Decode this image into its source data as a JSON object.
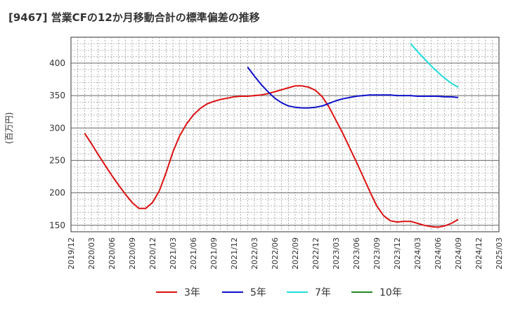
{
  "chart_data": {
    "type": "line",
    "title": "[9467]  営業CFの12か月移動合計の標準偏差の推移",
    "ylabel": "(百万円)",
    "xlabel": "",
    "ylim": [
      140,
      440
    ],
    "yticks": [
      150,
      200,
      250,
      300,
      350,
      400
    ],
    "x_range": [
      "2019-12",
      "2025-03"
    ],
    "x_tick_labels": [
      "2019/12",
      "2020/03",
      "2020/06",
      "2020/09",
      "2020/12",
      "2021/03",
      "2021/06",
      "2021/09",
      "2021/12",
      "2022/03",
      "2022/06",
      "2022/09",
      "2022/12",
      "2023/03",
      "2023/06",
      "2023/09",
      "2023/12",
      "2024/03",
      "2024/06",
      "2024/09",
      "2024/12",
      "2025/03"
    ],
    "grid": true,
    "legend_position": "bottom",
    "series": [
      {
        "name": "3年",
        "color": "#dd1111",
        "x": [
          "2020-02",
          "2020-03",
          "2020-04",
          "2020-05",
          "2020-06",
          "2020-07",
          "2020-08",
          "2020-09",
          "2020-10",
          "2020-11",
          "2020-12",
          "2021-01",
          "2021-02",
          "2021-03",
          "2021-04",
          "2021-05",
          "2021-06",
          "2021-07",
          "2021-08",
          "2021-09",
          "2021-10",
          "2021-11",
          "2021-12",
          "2022-01",
          "2022-02",
          "2022-03",
          "2022-04",
          "2022-05",
          "2022-06",
          "2022-07",
          "2022-08",
          "2022-09",
          "2022-10",
          "2022-11",
          "2022-12",
          "2023-01",
          "2023-02",
          "2023-03",
          "2023-04",
          "2023-05",
          "2023-06",
          "2023-07",
          "2023-08",
          "2023-09",
          "2023-10",
          "2023-11",
          "2023-12",
          "2024-01",
          "2024-02",
          "2024-03",
          "2024-04",
          "2024-05",
          "2024-06",
          "2024-07",
          "2024-08",
          "2024-09"
        ],
        "values": [
          292,
          276,
          259,
          243,
          227,
          212,
          198,
          185,
          176,
          176,
          185,
          203,
          231,
          263,
          288,
          306,
          320,
          330,
          337,
          341,
          344,
          346,
          348,
          349,
          349,
          350,
          351,
          353,
          356,
          359,
          362,
          365,
          365,
          363,
          358,
          348,
          332,
          312,
          292,
          270,
          248,
          225,
          202,
          180,
          165,
          157,
          155,
          156,
          156,
          153,
          150,
          148,
          147,
          149,
          153,
          159
        ]
      },
      {
        "name": "5年",
        "color": "#1111cc",
        "x": [
          "2022-02",
          "2022-03",
          "2022-04",
          "2022-05",
          "2022-06",
          "2022-07",
          "2022-08",
          "2022-09",
          "2022-10",
          "2022-11",
          "2022-12",
          "2023-01",
          "2023-02",
          "2023-03",
          "2023-04",
          "2023-05",
          "2023-06",
          "2023-07",
          "2023-08",
          "2023-09",
          "2023-10",
          "2023-11",
          "2023-12",
          "2024-01",
          "2024-02",
          "2024-03",
          "2024-04",
          "2024-05",
          "2024-06",
          "2024-07",
          "2024-08",
          "2024-09"
        ],
        "values": [
          394,
          380,
          367,
          356,
          346,
          339,
          334,
          332,
          331,
          331,
          332,
          334,
          338,
          342,
          345,
          347,
          349,
          350,
          351,
          351,
          351,
          351,
          350,
          350,
          350,
          349,
          349,
          349,
          349,
          348,
          348,
          347
        ]
      },
      {
        "name": "7年",
        "color": "#22dddd",
        "x": [
          "2024-02",
          "2024-03",
          "2024-04",
          "2024-05",
          "2024-06",
          "2024-07",
          "2024-08",
          "2024-09"
        ],
        "values": [
          430,
          418,
          407,
          396,
          386,
          377,
          369,
          363
        ]
      },
      {
        "name": "10年",
        "color": "#228822",
        "x": [],
        "values": []
      }
    ]
  }
}
